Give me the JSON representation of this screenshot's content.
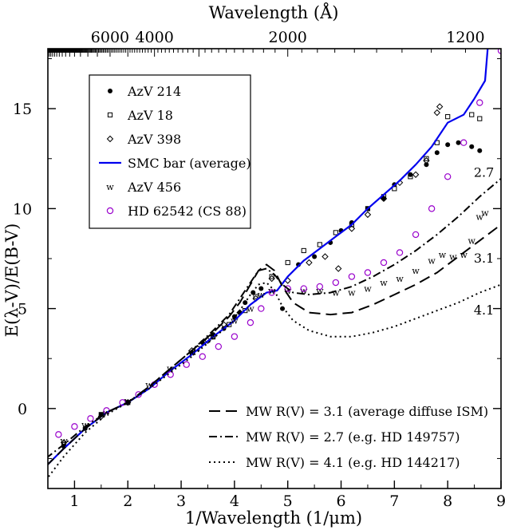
{
  "chart_data": {
    "type": "scatter",
    "xlabel": "1/Wavelength (1/μm)",
    "ylabel": "E(λ-V)/E(B-V)",
    "top_axis_label": "Wavelength (Å)",
    "xlim": [
      0.5,
      9
    ],
    "ylim": [
      -4,
      18
    ],
    "x_ticks": [
      1,
      2,
      3,
      4,
      5,
      6,
      7,
      8,
      9
    ],
    "y_ticks": [
      0,
      5,
      10,
      15
    ],
    "top_ticks": [
      {
        "label": "6000",
        "x": 1.667
      },
      {
        "label": "4000",
        "x": 2.5
      },
      {
        "label": "2000",
        "x": 5.0
      },
      {
        "label": "1200",
        "x": 8.333
      }
    ],
    "legend_position": "upper-left",
    "series": [
      {
        "name": "AzV 214",
        "marker": "filled-circle",
        "color": "#000000",
        "x": [
          0.46,
          0.8,
          1.2,
          1.5,
          2.0,
          3.2,
          3.4,
          3.6,
          3.8,
          4.0,
          4.1,
          4.2,
          4.35,
          4.5,
          4.9,
          5.2,
          5.5,
          5.8,
          6.0,
          6.2,
          6.5,
          6.8,
          7.0,
          7.3,
          7.6,
          7.8,
          8.0,
          8.2,
          8.45,
          8.6
        ],
        "y": [
          -2.6,
          -1.9,
          -1.0,
          -0.3,
          0.3,
          2.8,
          3.3,
          3.7,
          4.0,
          4.6,
          4.8,
          5.3,
          5.8,
          6.0,
          5.0,
          7.2,
          7.6,
          8.3,
          8.9,
          9.3,
          10.0,
          10.5,
          11.2,
          11.7,
          12.2,
          12.8,
          13.2,
          13.3,
          13.1,
          12.9
        ]
      },
      {
        "name": "AzV 18",
        "marker": "open-square",
        "color": "#000000",
        "x": [
          0.46,
          0.8,
          1.5,
          2.0,
          3.3,
          3.6,
          3.9,
          4.2,
          4.4,
          4.7,
          5.0,
          5.3,
          5.6,
          5.9,
          6.2,
          6.5,
          6.8,
          7.0,
          7.3,
          7.6,
          7.8,
          8.0,
          8.45,
          8.6
        ],
        "y": [
          -2.4,
          -1.8,
          -0.3,
          0.3,
          3.0,
          3.6,
          4.2,
          4.9,
          5.6,
          6.6,
          7.3,
          7.9,
          8.2,
          8.8,
          9.2,
          10.0,
          10.6,
          11.0,
          11.6,
          12.5,
          13.3,
          14.6,
          14.7,
          14.5
        ]
      },
      {
        "name": "AzV 398",
        "marker": "open-diamond",
        "color": "#000000",
        "x": [
          0.46,
          0.8,
          1.5,
          2.0,
          3.2,
          3.5,
          3.8,
          4.1,
          4.4,
          4.7,
          5.0,
          5.4,
          5.7,
          5.95,
          6.2,
          6.5,
          6.8,
          7.1,
          7.4,
          7.6,
          7.8,
          7.85
        ],
        "y": [
          -2.3,
          -1.7,
          -0.4,
          0.3,
          2.9,
          3.4,
          4.2,
          4.8,
          5.5,
          6.5,
          6.4,
          7.3,
          7.6,
          7.0,
          9.0,
          9.7,
          10.5,
          11.3,
          11.7,
          12.4,
          14.8,
          15.1
        ]
      },
      {
        "name": "SMC bar (average)",
        "marker": "line",
        "color": "#0000ee",
        "x": [
          0.46,
          0.8,
          1.2,
          1.6,
          2.0,
          2.4,
          2.8,
          3.2,
          3.6,
          4.0,
          4.3,
          4.6,
          4.8,
          5.0,
          5.3,
          5.6,
          5.9,
          6.2,
          6.5,
          6.8,
          7.1,
          7.4,
          7.7,
          8.0,
          8.3,
          8.5,
          8.7,
          8.75
        ],
        "y": [
          -2.9,
          -2.0,
          -1.0,
          -0.2,
          0.3,
          1.0,
          1.9,
          2.7,
          3.6,
          4.4,
          5.2,
          5.8,
          5.9,
          6.6,
          7.4,
          8.0,
          8.6,
          9.2,
          10.0,
          10.7,
          11.4,
          12.2,
          13.1,
          14.3,
          14.7,
          15.5,
          16.4,
          18.0
        ]
      },
      {
        "name": "AzV 456",
        "marker": "w",
        "color": "#ff0000",
        "x": [
          0.46,
          0.8,
          1.2,
          1.6,
          2.0,
          2.4,
          2.8,
          3.2,
          3.6,
          4.0,
          4.3,
          4.5,
          4.7,
          5.0,
          5.3,
          5.6,
          5.9,
          6.2,
          6.5,
          6.8,
          7.1,
          7.4,
          7.7,
          7.9,
          8.1,
          8.3,
          8.45,
          8.6,
          8.7
        ],
        "y": [
          -2.5,
          -1.6,
          -0.8,
          -0.2,
          0.4,
          1.2,
          2.0,
          2.8,
          3.6,
          4.4,
          5.0,
          5.7,
          5.9,
          5.9,
          5.9,
          5.9,
          5.8,
          5.8,
          6.0,
          6.3,
          6.5,
          6.9,
          7.4,
          7.7,
          7.6,
          7.7,
          8.4,
          9.6,
          9.8
        ]
      },
      {
        "name": "HD 62542 (CS 88)",
        "marker": "open-circle",
        "color": "#9900cc",
        "x": [
          0.46,
          0.7,
          1.0,
          1.3,
          1.6,
          1.9,
          2.2,
          2.5,
          2.8,
          3.1,
          3.4,
          3.7,
          4.0,
          4.3,
          4.5,
          4.7,
          5.0,
          5.3,
          5.6,
          5.9,
          6.2,
          6.5,
          6.8,
          7.1,
          7.4,
          7.7,
          8.0,
          8.3,
          8.6,
          9.0
        ],
        "y": [
          -1.6,
          -1.3,
          -0.9,
          -0.5,
          -0.1,
          0.3,
          0.7,
          1.2,
          1.7,
          2.2,
          2.6,
          3.1,
          3.6,
          4.3,
          5.0,
          5.8,
          6.0,
          6.0,
          6.1,
          6.3,
          6.6,
          6.8,
          7.3,
          7.8,
          8.7,
          10.0,
          11.6,
          13.3,
          15.3,
          17.9
        ]
      },
      {
        "name": "MW R(V) = 3.1 (average diffuse ISM)",
        "marker": "dashed",
        "color": "#000000",
        "rv": 3.1,
        "x": [
          0.46,
          0.8,
          1.2,
          1.6,
          2.0,
          2.4,
          2.8,
          3.2,
          3.6,
          3.9,
          4.1,
          4.3,
          4.45,
          4.6,
          4.75,
          4.9,
          5.1,
          5.4,
          5.8,
          6.2,
          6.6,
          7.0,
          7.4,
          7.8,
          8.2,
          8.6,
          9.0
        ],
        "y": [
          -2.9,
          -2.0,
          -1.0,
          -0.2,
          0.3,
          1.1,
          2.0,
          2.9,
          3.8,
          4.6,
          5.3,
          6.2,
          6.9,
          7.2,
          6.9,
          6.1,
          5.3,
          4.8,
          4.7,
          4.8,
          5.2,
          5.7,
          6.2,
          6.8,
          7.6,
          8.4,
          9.2
        ]
      },
      {
        "name": "MW R(V) = 2.7 (e.g. HD 149757)",
        "marker": "dash-dot",
        "color": "#000000",
        "rv": 2.7,
        "x": [
          0.46,
          0.8,
          1.2,
          1.6,
          2.0,
          2.4,
          2.8,
          3.2,
          3.6,
          3.9,
          4.1,
          4.3,
          4.45,
          4.6,
          4.75,
          4.9,
          5.1,
          5.4,
          5.8,
          6.2,
          6.6,
          7.0,
          7.4,
          7.8,
          8.2,
          8.6,
          9.0
        ],
        "y": [
          -2.5,
          -1.8,
          -0.9,
          -0.2,
          0.3,
          1.1,
          2.0,
          2.9,
          3.9,
          4.7,
          5.5,
          6.3,
          6.9,
          7.0,
          6.7,
          6.2,
          5.8,
          5.7,
          5.8,
          6.1,
          6.6,
          7.2,
          7.9,
          8.7,
          9.6,
          10.6,
          11.5
        ]
      },
      {
        "name": "MW R(V) = 4.1 (e.g. HD 144217)",
        "marker": "dotted",
        "color": "#000000",
        "rv": 4.1,
        "x": [
          0.46,
          0.8,
          1.2,
          1.6,
          2.0,
          2.4,
          2.8,
          3.2,
          3.6,
          3.9,
          4.1,
          4.3,
          4.45,
          4.6,
          4.75,
          4.9,
          5.1,
          5.4,
          5.8,
          6.2,
          6.6,
          7.0,
          7.4,
          7.8,
          8.2,
          8.6,
          9.0
        ],
        "y": [
          -3.6,
          -2.4,
          -1.2,
          -0.3,
          0.3,
          1.0,
          1.8,
          2.6,
          3.5,
          4.2,
          4.9,
          5.7,
          6.2,
          6.3,
          5.9,
          5.1,
          4.4,
          3.9,
          3.6,
          3.6,
          3.8,
          4.1,
          4.5,
          4.9,
          5.3,
          5.8,
          6.2
        ]
      }
    ],
    "rv_labels": [
      {
        "text": "2.7",
        "x": 8.5,
        "y": 11.8
      },
      {
        "text": "3.1",
        "x": 8.5,
        "y": 7.5
      },
      {
        "text": "4.1",
        "x": 8.5,
        "y": 4.9
      }
    ]
  }
}
